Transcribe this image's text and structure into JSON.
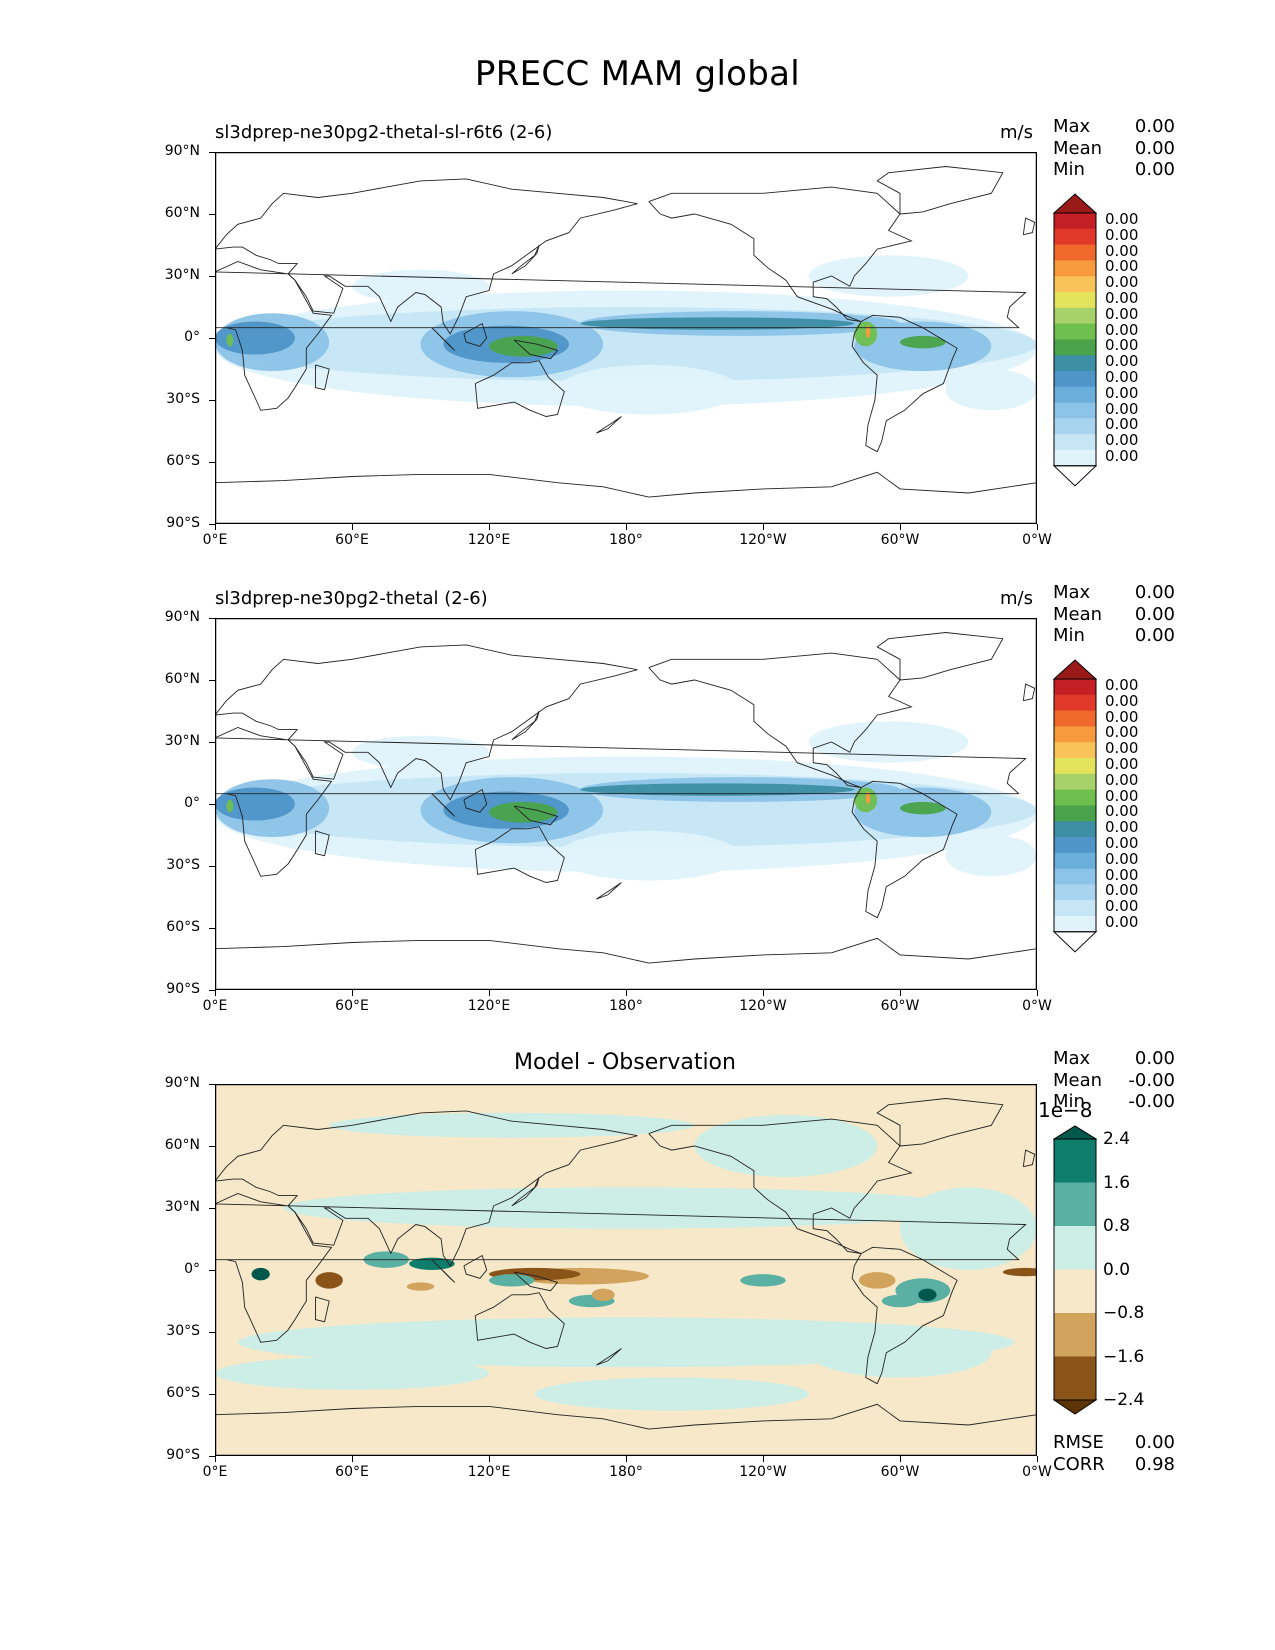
{
  "figure": {
    "title": "PRECC MAM global"
  },
  "axes": {
    "lat_ticks": [
      "90°N",
      "60°N",
      "30°N",
      "0°",
      "30°S",
      "60°S",
      "90°S"
    ],
    "lon_ticks": [
      "0°E",
      "60°E",
      "120°E",
      "180°",
      "120°W",
      "60°W",
      "0°W"
    ]
  },
  "panels": [
    {
      "title": "sl3dprep-ne30pg2-thetal-sl-r6t6 (2-6)",
      "units": "m/s",
      "stats": [
        {
          "label": "Max",
          "value": "0.00"
        },
        {
          "label": "Mean",
          "value": "0.00"
        },
        {
          "label": "Min",
          "value": "0.00"
        }
      ],
      "colorbar_labels": [
        "0.00",
        "0.00",
        "0.00",
        "0.00",
        "0.00",
        "0.00",
        "0.00",
        "0.00",
        "0.00",
        "0.00",
        "0.00",
        "0.00",
        "0.00",
        "0.00",
        "0.00",
        "0.00"
      ]
    },
    {
      "title": "sl3dprep-ne30pg2-thetal (2-6)",
      "units": "m/s",
      "stats": [
        {
          "label": "Max",
          "value": "0.00"
        },
        {
          "label": "Mean",
          "value": "0.00"
        },
        {
          "label": "Min",
          "value": "0.00"
        }
      ],
      "colorbar_labels": [
        "0.00",
        "0.00",
        "0.00",
        "0.00",
        "0.00",
        "0.00",
        "0.00",
        "0.00",
        "0.00",
        "0.00",
        "0.00",
        "0.00",
        "0.00",
        "0.00",
        "0.00",
        "0.00"
      ]
    },
    {
      "title": "Model - Observation",
      "stats": [
        {
          "label": "Max",
          "value": "0.00"
        },
        {
          "label": "Mean",
          "value": "-0.00"
        },
        {
          "label": "Min",
          "value": "-0.00"
        }
      ],
      "colorbar_exponent": "1e−8",
      "colorbar_labels": [
        "2.4",
        "1.6",
        "0.8",
        "0.0",
        "−0.8",
        "−1.6",
        "−2.4"
      ],
      "metrics": [
        {
          "label": "RMSE",
          "value": "0.00"
        },
        {
          "label": "CORR",
          "value": "0.98"
        }
      ]
    }
  ],
  "colors": {
    "precip": [
      "#ffffff",
      "#e0f3fb",
      "#c6e6f6",
      "#a9d4f0",
      "#8cc3e8",
      "#6aaedc",
      "#4f95c8",
      "#3d8fa5",
      "#4aa34a",
      "#6fbf4e",
      "#a7d26a",
      "#e3e35c",
      "#f9c35a",
      "#f79a3e",
      "#ef6a2a",
      "#e0392a",
      "#c41f24",
      "#9a1a1a"
    ],
    "diff": [
      "#00574b",
      "#0f7d6c",
      "#5ab0a3",
      "#cdeee6",
      "#f6e8c8",
      "#d2a35c",
      "#8a5418",
      "#5c3405"
    ]
  }
}
